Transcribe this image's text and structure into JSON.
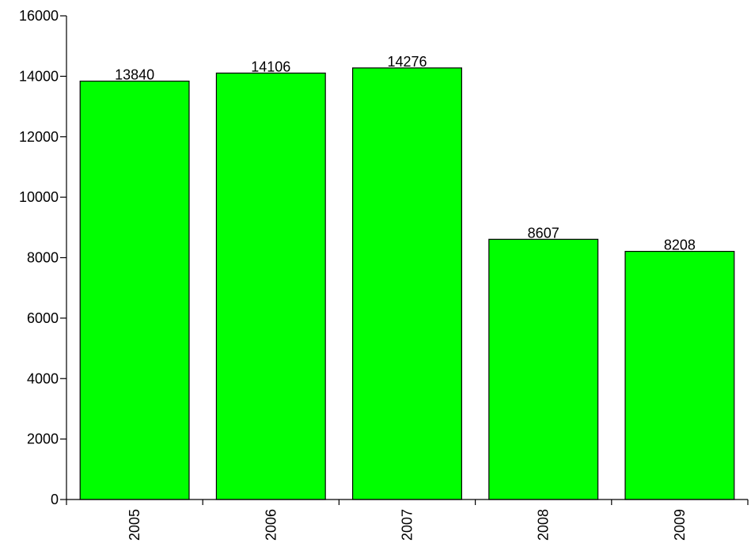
{
  "chart_data": {
    "type": "bar",
    "categories": [
      "2005",
      "2006",
      "2007",
      "2008",
      "2009"
    ],
    "values": [
      13840,
      14106,
      14276,
      8607,
      8208
    ],
    "data_labels": [
      "13840",
      "14106",
      "14276",
      "8607",
      "8208"
    ],
    "y_ticks": [
      0,
      2000,
      4000,
      6000,
      8000,
      10000,
      12000,
      14000,
      16000
    ],
    "y_tick_labels": [
      "0",
      "2000",
      "4000",
      "6000",
      "8000",
      "10000",
      "12000",
      "14000",
      "16000"
    ],
    "ylim": [
      0,
      16000
    ],
    "title": "",
    "xlabel": "",
    "ylabel": "",
    "grid": false,
    "legend": "none",
    "bar_color": "#00ff00",
    "outline_color": "#000000"
  }
}
